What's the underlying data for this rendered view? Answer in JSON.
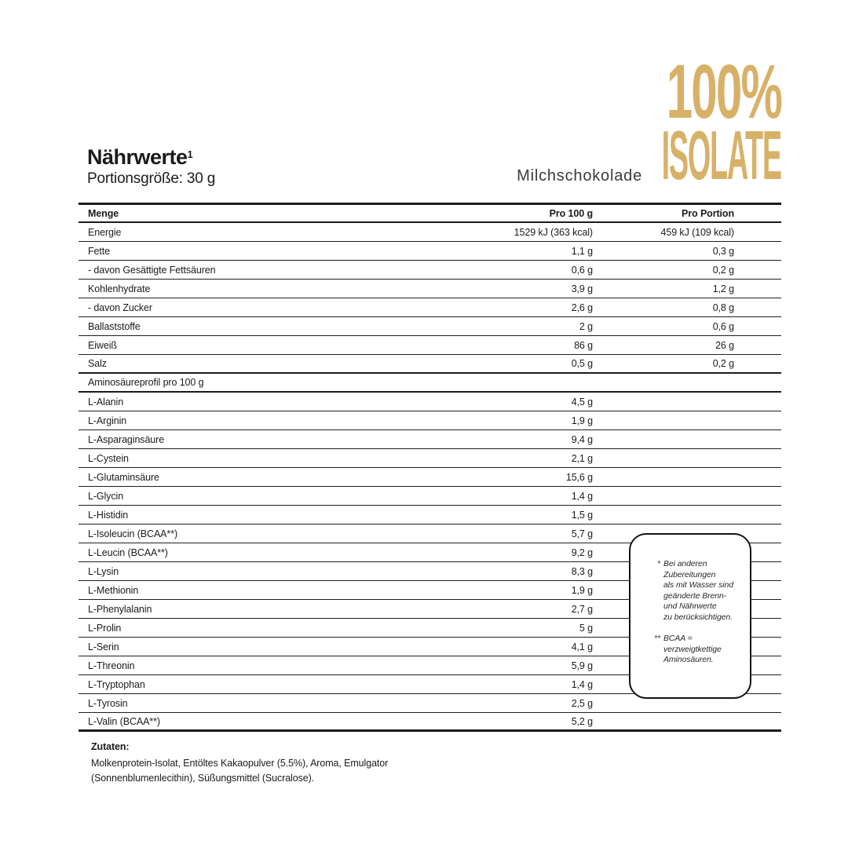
{
  "accent_gold": "#d8b169",
  "logo": {
    "line1": "100%",
    "line2": "ISOLATE"
  },
  "header": {
    "title": "Nährwerte",
    "title_footnote": "1",
    "serving": "Portionsgröße: 30 g",
    "flavor": "Milchschokolade"
  },
  "table": {
    "columns": {
      "col1": "Menge",
      "col2": "Pro 100 g",
      "col3": "Pro Portion"
    },
    "rows": [
      {
        "label": "Energie",
        "per100": "1529 kJ (363 kcal)",
        "portion": "459 kJ (109 kcal)"
      },
      {
        "label": "Fette",
        "per100": "1,1 g",
        "portion": "0,3 g"
      },
      {
        "label": "- davon Gesättigte Fettsäuren",
        "per100": "0,6 g",
        "portion": "0,2 g"
      },
      {
        "label": "Kohlenhydrate",
        "per100": "3,9 g",
        "portion": "1,2 g"
      },
      {
        "label": "- davon Zucker",
        "per100": "2,6 g",
        "portion": "0,8 g"
      },
      {
        "label": "Ballaststoffe",
        "per100": "2 g",
        "portion": "0,6 g"
      },
      {
        "label": "Eiweiß",
        "per100": "86 g",
        "portion": "26 g"
      },
      {
        "label": "Salz",
        "per100": "0,5 g",
        "portion": "0,2 g"
      }
    ],
    "section_header": "Aminosäureprofil pro 100 g",
    "amino_rows": [
      {
        "label": "L-Alanin",
        "per100": "4,5 g",
        "portion": ""
      },
      {
        "label": "L-Arginin",
        "per100": "1,9 g",
        "portion": ""
      },
      {
        "label": "L-Asparaginsäure",
        "per100": "9,4 g",
        "portion": ""
      },
      {
        "label": "L-Cystein",
        "per100": "2,1 g",
        "portion": ""
      },
      {
        "label": "L-Glutaminsäure",
        "per100": "15,6 g",
        "portion": ""
      },
      {
        "label": "L-Glycin",
        "per100": "1,4 g",
        "portion": ""
      },
      {
        "label": "L-Histidin",
        "per100": "1,5 g",
        "portion": ""
      },
      {
        "label": "L-Isoleucin (BCAA**)",
        "per100": "5,7 g",
        "portion": ""
      },
      {
        "label": "L-Leucin (BCAA**)",
        "per100": "9,2 g",
        "portion": ""
      },
      {
        "label": "L-Lysin",
        "per100": "8,3 g",
        "portion": ""
      },
      {
        "label": "L-Methionin",
        "per100": "1,9 g",
        "portion": ""
      },
      {
        "label": "L-Phenylalanin",
        "per100": "2,7 g",
        "portion": ""
      },
      {
        "label": "L-Prolin",
        "per100": "5 g",
        "portion": ""
      },
      {
        "label": "L-Serin",
        "per100": "4,1 g",
        "portion": ""
      },
      {
        "label": "L-Threonin",
        "per100": "5,9 g",
        "portion": ""
      },
      {
        "label": "L-Tryptophan",
        "per100": "1,4 g",
        "portion": ""
      },
      {
        "label": "L-Tyrosin",
        "per100": "2,5 g",
        "portion": ""
      },
      {
        "label": "L-Valin (BCAA**)",
        "per100": "5,2 g",
        "portion": ""
      }
    ]
  },
  "notes": [
    {
      "marker": "*",
      "text": "Bei anderen\nZubereitungen\nals mit Wasser sind\ngeänderte Brenn-\nund Nährwerte\nzu berücksichtigen."
    },
    {
      "marker": "**",
      "text": "BCAA =\nverzweigtkettige\nAminosäuren."
    }
  ],
  "ingredients": {
    "heading": "Zutaten:",
    "text": "Molkenprotein-Isolat, Entöltes Kakaopulver (5.5%), Aroma, Emulgator\n(Sonnenblumenlecithin), Süßungsmittel (Sucralose)."
  }
}
